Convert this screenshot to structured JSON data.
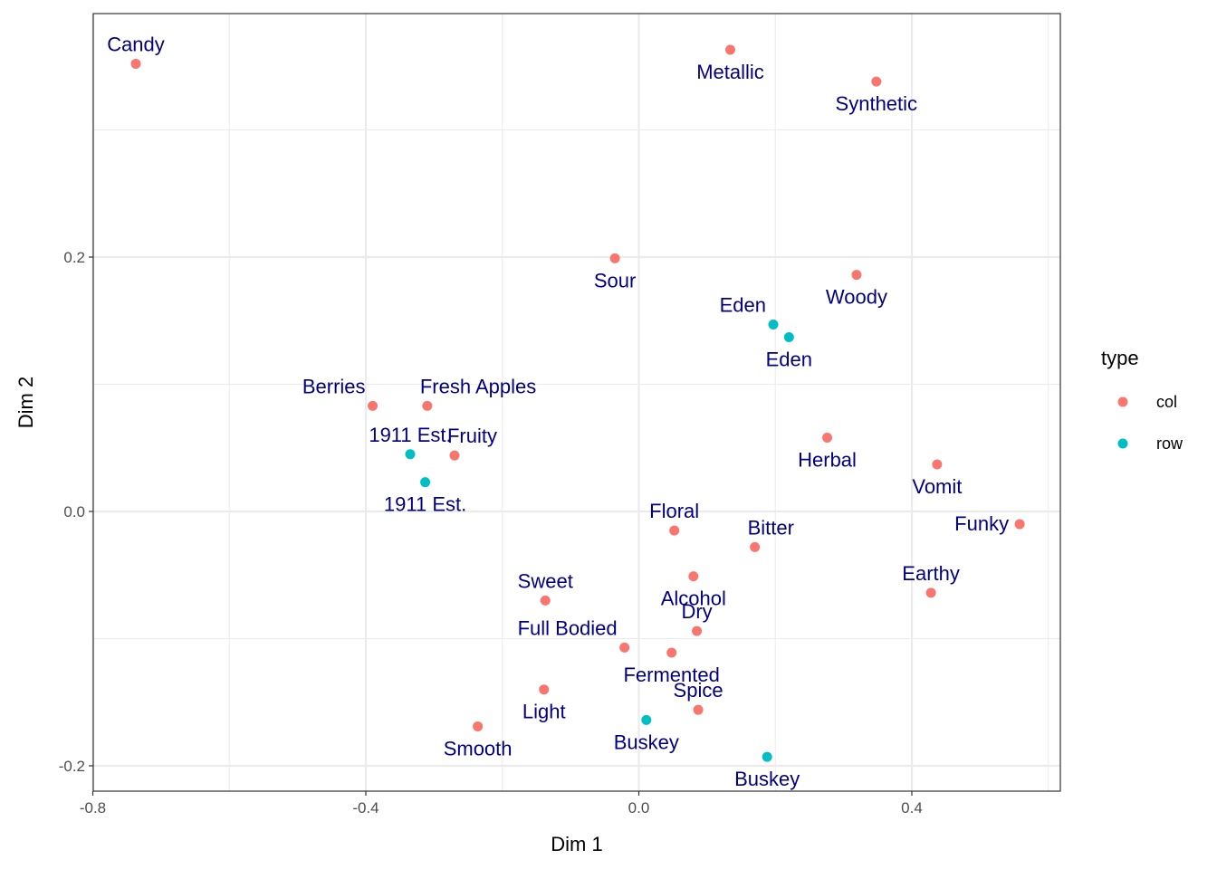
{
  "chart_data": {
    "type": "scatter",
    "title": "",
    "xlabel": "Dim 1",
    "ylabel": "Dim 2",
    "xlim": [
      -0.8,
      0.62
    ],
    "ylim": [
      -0.22,
      0.375
    ],
    "x_ticks": [
      -0.8,
      -0.4,
      0.0,
      0.4
    ],
    "x_tick_labels": [
      "-0.8",
      "-0.4",
      "0.0",
      "0.4"
    ],
    "y_ticks": [
      -0.2,
      0.0,
      0.2
    ],
    "y_tick_labels": [
      "-0.2",
      "0.0",
      "0.2"
    ],
    "grid": true,
    "legend": {
      "title": "type",
      "placement": "right",
      "entries": [
        {
          "name": "col",
          "color": "#F8766D"
        },
        {
          "name": "row",
          "color": "#00BFC4"
        }
      ]
    },
    "series": [
      {
        "name": "col",
        "color": "#F8766D",
        "points": [
          {
            "label": "Candy",
            "x": -0.737,
            "y": 0.352,
            "pos": "above"
          },
          {
            "label": "Metallic",
            "x": 0.134,
            "y": 0.363,
            "pos": "below"
          },
          {
            "label": "Synthetic",
            "x": 0.348,
            "y": 0.338,
            "pos": "below"
          },
          {
            "label": "Sour",
            "x": -0.035,
            "y": 0.199,
            "pos": "below"
          },
          {
            "label": "Woody",
            "x": 0.319,
            "y": 0.186,
            "pos": "below"
          },
          {
            "label": "Berries",
            "x": -0.39,
            "y": 0.083,
            "pos": "aboveleft"
          },
          {
            "label": "Fresh Apples",
            "x": -0.31,
            "y": 0.083,
            "pos": "aboveright"
          },
          {
            "label": "Fruity",
            "x": -0.27,
            "y": 0.044,
            "pos": "aboveright"
          },
          {
            "label": "Herbal",
            "x": 0.276,
            "y": 0.058,
            "pos": "below"
          },
          {
            "label": "Vomit",
            "x": 0.437,
            "y": 0.037,
            "pos": "below"
          },
          {
            "label": "Floral",
            "x": 0.052,
            "y": -0.015,
            "pos": "above"
          },
          {
            "label": "Bitter",
            "x": 0.17,
            "y": -0.028,
            "pos": "aboveright"
          },
          {
            "label": "Funky",
            "x": 0.558,
            "y": -0.01,
            "pos": "left"
          },
          {
            "label": "Earthy",
            "x": 0.428,
            "y": -0.064,
            "pos": "above"
          },
          {
            "label": "Alcohol",
            "x": 0.08,
            "y": -0.051,
            "pos": "below"
          },
          {
            "label": "Sweet",
            "x": -0.137,
            "y": -0.07,
            "pos": "above"
          },
          {
            "label": "Dry",
            "x": 0.085,
            "y": -0.094,
            "pos": "above"
          },
          {
            "label": "Full Bodied",
            "x": -0.021,
            "y": -0.107,
            "pos": "aboveleft"
          },
          {
            "label": "Fermented",
            "x": 0.048,
            "y": -0.111,
            "pos": "below"
          },
          {
            "label": "Spice",
            "x": 0.087,
            "y": -0.156,
            "pos": "above"
          },
          {
            "label": "Light",
            "x": -0.139,
            "y": -0.14,
            "pos": "below"
          },
          {
            "label": "Smooth",
            "x": -0.236,
            "y": -0.169,
            "pos": "below"
          }
        ]
      },
      {
        "name": "row",
        "color": "#00BFC4",
        "points": [
          {
            "label": "Eden",
            "x": 0.197,
            "y": 0.147,
            "pos": "aboveleft"
          },
          {
            "label": "Eden",
            "x": 0.22,
            "y": 0.137,
            "pos": "below"
          },
          {
            "label": "1911 Est.",
            "x": -0.335,
            "y": 0.045,
            "pos": "above"
          },
          {
            "label": "1911 Est.",
            "x": -0.313,
            "y": 0.023,
            "pos": "below"
          },
          {
            "label": "Buskey",
            "x": 0.011,
            "y": -0.164,
            "pos": "below"
          },
          {
            "label": "Buskey",
            "x": 0.188,
            "y": -0.193,
            "pos": "below"
          }
        ]
      }
    ]
  }
}
